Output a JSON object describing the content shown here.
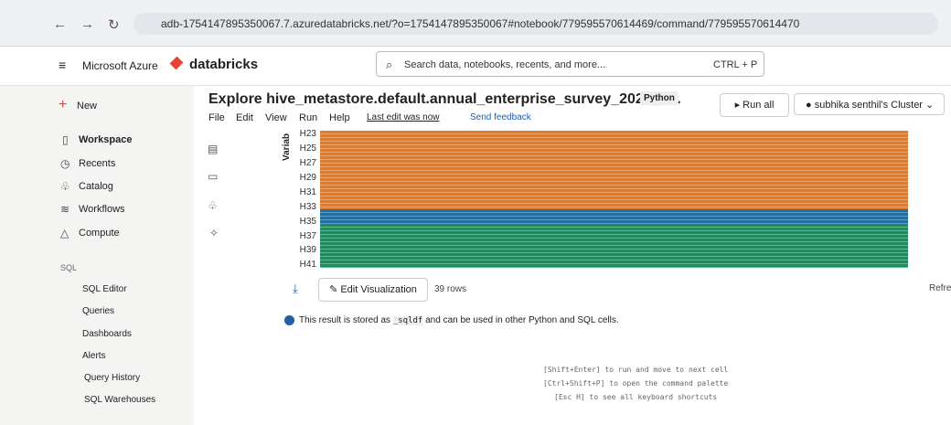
{
  "browser": {
    "url": "adb-1754147895350067.7.azuredatabricks.net/?o=1754147895350067#notebook/779595570614469/command/779595570614470"
  },
  "header": {
    "brand": "Microsoft Azure",
    "product": "databricks",
    "search": "Search data, notebooks, recents, and more...",
    "shortcut": "CTRL + P"
  },
  "sidebar": {
    "new": "New",
    "items": [
      "Workspace",
      "Recents",
      "Catalog",
      "Workflows",
      "Compute"
    ],
    "section": "SQL",
    "sql_items": [
      "SQL Editor",
      "Queries",
      "Dashboards",
      "Alerts",
      "Query History",
      "SQL Warehouses"
    ]
  },
  "notebook": {
    "title": "Explore hive_metastore.default.annual_enterprise_survey_2023_fi...",
    "language": "Python",
    "menu": [
      "File",
      "Edit",
      "View",
      "Run",
      "Help"
    ],
    "last_edit": "Last edit was now",
    "feedback": "Send feedback",
    "run_all": "Run all",
    "cluster": "subhika senthil's Cluster"
  },
  "chart": {
    "axis_label": "Variab",
    "labels": [
      "H23",
      "H25",
      "H27",
      "H29",
      "H31",
      "H33",
      "H35",
      "H37",
      "H39",
      "H41"
    ]
  },
  "result": {
    "edit_visualization": "Edit Visualization",
    "rows": "39 rows",
    "refresh": "Refre",
    "info": [
      "This result is stored as",
      "_sqldf",
      "and can be used in other",
      "Python",
      "and",
      "SQL",
      "cells."
    ]
  },
  "shortcuts": [
    "[Shift+Enter] to run and move to next cell",
    "[Ctrl+Shift+P] to open the command palette",
    "[Esc H] to see all keyboard shortcuts"
  ]
}
